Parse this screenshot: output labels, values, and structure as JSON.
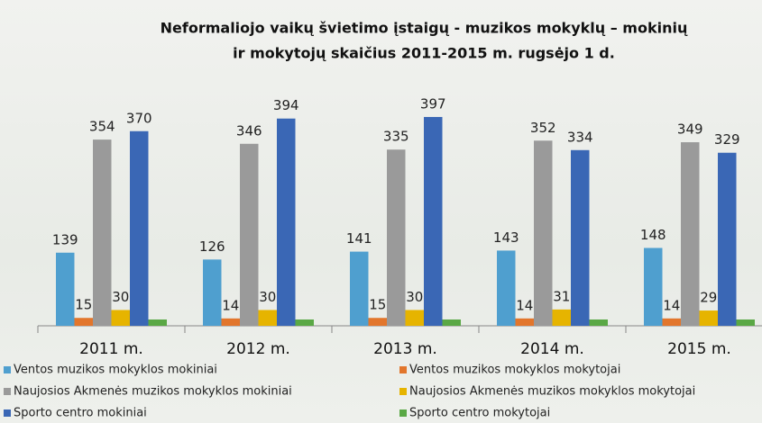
{
  "chart_data": {
    "type": "bar",
    "title": [
      "Neformaliojo vaikų švietimo įstaigų - muzikos mokyklų – mokinių",
      "ir mokytojų skaičius 2011-2015 m. rugsėjo 1 d."
    ],
    "categories": [
      "2011 m.",
      "2012 m.",
      "2013 m.",
      "2014 m.",
      "2015 m."
    ],
    "ylim": [
      0,
      450
    ],
    "series": [
      {
        "name": "Ventos muzikos mokyklos mokiniai",
        "color": "#4f9fcf",
        "values": [
          139,
          126,
          141,
          143,
          148
        ]
      },
      {
        "name": "Ventos muzikos mokyklos mokytojai",
        "color": "#e2762c",
        "values": [
          15,
          14,
          15,
          14,
          14
        ]
      },
      {
        "name": "Naujosios Akmenės muzikos mokyklos mokiniai",
        "color": "#9a9a9a",
        "values": [
          354,
          346,
          335,
          352,
          349
        ]
      },
      {
        "name": "Naujosios Akmenės muzikos mokyklos mokytojai",
        "color": "#e6b400",
        "values": [
          30,
          30,
          30,
          31,
          29
        ]
      },
      {
        "name": "Sporto centro mokiniai",
        "color": "#3a67b5",
        "values": [
          370,
          394,
          397,
          334,
          329
        ]
      },
      {
        "name": "Sporto centro mokytojai",
        "color": "#5aa845",
        "values": [
          12,
          12,
          12,
          12,
          12
        ],
        "labels": false
      }
    ]
  }
}
